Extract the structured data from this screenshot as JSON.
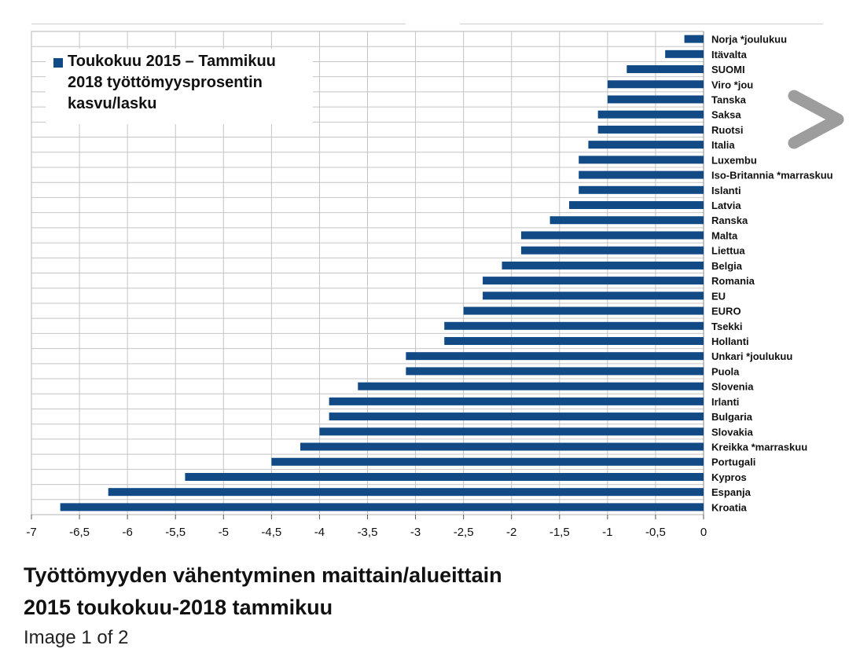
{
  "legend": {
    "label": "Toukokuu 2015 – Tammikuu 2018 työttömyysprosentin kasvu/lasku",
    "color": "#114a85"
  },
  "caption": {
    "line1": "Työttömyyden vähentyminen maittain/alueittain",
    "line2": "2015 toukokuu-2018 tammikuu",
    "partial": "Image 1 of 2"
  },
  "chart_data": {
    "type": "bar",
    "orientation": "horizontal",
    "title": "",
    "xlabel": "",
    "ylabel": "",
    "xlim": [
      -7,
      0
    ],
    "grid": true,
    "legend_position": "top-left",
    "x_ticks": [
      "-7",
      "-6,5",
      "-6",
      "-5,5",
      "-5",
      "-4,5",
      "-4",
      "-3,5",
      "-3",
      "-2,5",
      "-2",
      "-1,5",
      "-1",
      "-0,5",
      "0"
    ],
    "series": [
      {
        "name": "Toukokuu 2015 – Tammikuu 2018 työttömyysprosentin kasvu/lasku",
        "color": "#114a85",
        "categories": [
          "Norja *joulukuu",
          "Itävalta",
          "SUOMI",
          "Viro *jou",
          "Tanska",
          "Saksa",
          "Ruotsi",
          "Italia",
          "Luxembu",
          "Iso-Britannia *marraskuu",
          "Islanti",
          "Latvia",
          "Ranska",
          "Malta",
          "Liettua",
          "Belgia",
          "Romania",
          "EU",
          "EURO",
          "Tsekki",
          "Hollanti",
          "Unkari *joulukuu",
          "Puola",
          "Slovenia",
          "Irlanti",
          "Bulgaria",
          "Slovakia",
          "Kreikka *marraskuu",
          "Portugali",
          "Kypros",
          "Espanja",
          "Kroatia"
        ],
        "values": [
          -0.2,
          -0.4,
          -0.8,
          -1.0,
          -1.0,
          -1.1,
          -1.1,
          -1.2,
          -1.3,
          -1.3,
          -1.3,
          -1.4,
          -1.6,
          -1.9,
          -1.9,
          -2.1,
          -2.3,
          -2.3,
          -2.5,
          -2.7,
          -2.7,
          -3.1,
          -3.1,
          -3.6,
          -3.9,
          -3.9,
          -4.0,
          -4.2,
          -4.5,
          -5.4,
          -6.2,
          -6.7
        ]
      }
    ]
  }
}
